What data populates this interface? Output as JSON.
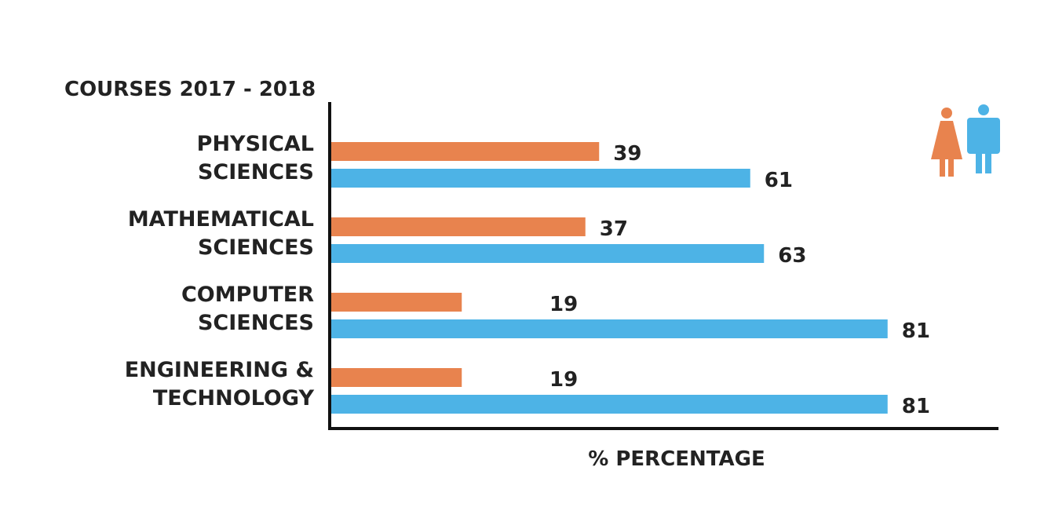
{
  "chart_data": {
    "type": "bar",
    "orientation": "horizontal",
    "title": "COURSES 2017 - 2018",
    "xlabel": "% PERCENTAGE",
    "ylabel": "",
    "xlim": [
      0,
      100
    ],
    "grid": false,
    "legend": "top-right",
    "categories": [
      [
        "PHYSICAL",
        "SCIENCES"
      ],
      [
        "MATHEMATICAL",
        "SCIENCES"
      ],
      [
        "COMPUTER",
        "SCIENCES"
      ],
      [
        "ENGINEERING &",
        "TECHNOLOGY"
      ]
    ],
    "series": [
      {
        "color": "#e8834e",
        "legend_icon": "female-figure-icon",
        "values": [
          39,
          37,
          19,
          19
        ]
      },
      {
        "color": "#4db3e6",
        "legend_icon": "male-figure-icon",
        "values": [
          61,
          63,
          81,
          81
        ]
      }
    ]
  }
}
